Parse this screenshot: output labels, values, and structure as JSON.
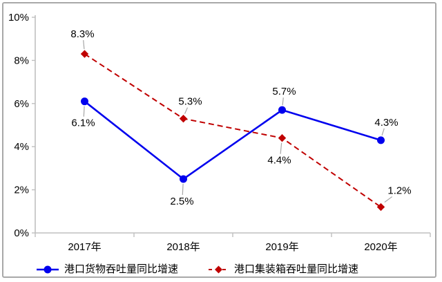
{
  "chart_data": {
    "type": "line",
    "title": "",
    "xlabel": "",
    "ylabel": "",
    "categories": [
      "2017年",
      "2018年",
      "2019年",
      "2020年"
    ],
    "series": [
      {
        "name": "港口货物吞吐量同比增速",
        "values": [
          6.1,
          2.5,
          5.7,
          4.3
        ],
        "labels": [
          "6.1%",
          "2.5%",
          "5.7%",
          "4.3%"
        ],
        "color": "#0000ee",
        "line_style": "solid",
        "marker": "circle",
        "label_offsets": [
          {
            "dx": -2,
            "dy": 31
          },
          {
            "dx": -2,
            "dy": 32
          },
          {
            "dx": 3,
            "dy": -27
          },
          {
            "dx": 8,
            "dy": -26
          }
        ]
      },
      {
        "name": "港口集装箱吞吐量同比增速",
        "values": [
          8.3,
          5.3,
          4.4,
          1.2
        ],
        "labels": [
          "8.3%",
          "5.3%",
          "4.4%",
          "1.2%"
        ],
        "color": "#c00000",
        "line_style": "dashed",
        "marker": "diamond",
        "label_offsets": [
          {
            "dx": -3,
            "dy": -29
          },
          {
            "dx": 10,
            "dy": -25
          },
          {
            "dx": -4,
            "dy": 32
          },
          {
            "dx": 27,
            "dy": -24
          }
        ]
      }
    ],
    "ylim": [
      0,
      10
    ],
    "ytick_step": 2,
    "ytick_labels": [
      "0%",
      "2%",
      "4%",
      "6%",
      "8%",
      "10%"
    ],
    "grid": false,
    "legend_position": "bottom",
    "axis_color": "#bfbfbf",
    "leader_line_color": "#a6a6a6",
    "text_color": "#000000"
  },
  "legend": {
    "items": [
      {
        "label": "港口货物吞吐量同比增速",
        "color": "#0000ee",
        "marker": "circle",
        "line": "solid"
      },
      {
        "label": "港口集装箱吞吐量同比增速",
        "color": "#c00000",
        "marker": "diamond",
        "line": "dashed"
      }
    ]
  }
}
